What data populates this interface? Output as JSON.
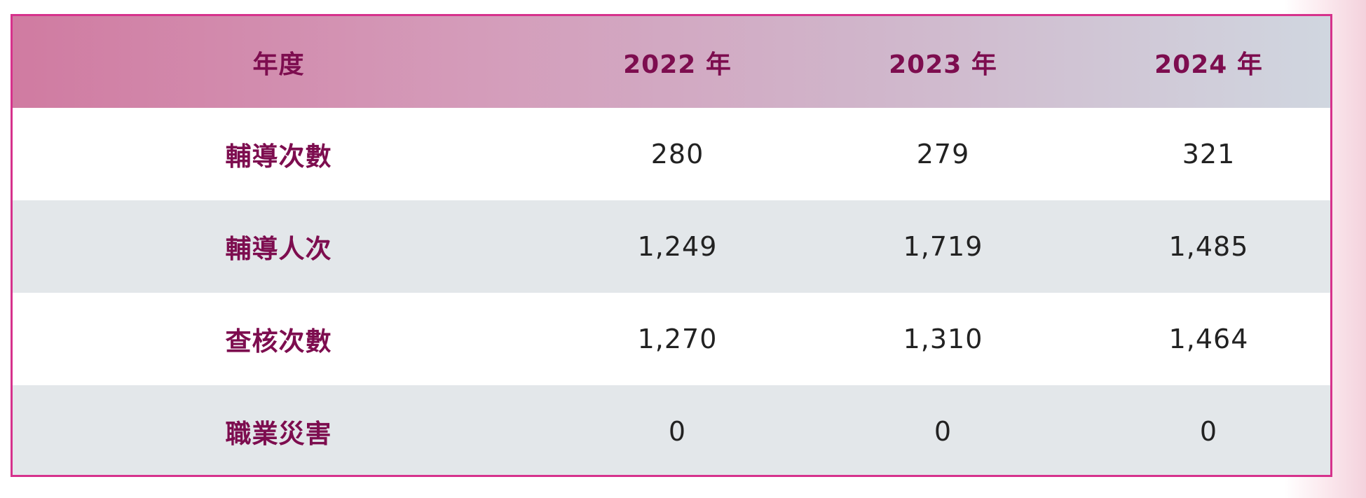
{
  "table": {
    "header": {
      "label": "年度",
      "years": [
        "2022 年",
        "2023 年",
        "2024 年"
      ]
    },
    "rows": [
      {
        "label": "輔導次數",
        "values": [
          "280",
          "279",
          "321"
        ]
      },
      {
        "label": "輔導人次",
        "values": [
          "1,249",
          "1,719",
          "1,485"
        ]
      },
      {
        "label": "查核次數",
        "values": [
          "1,270",
          "1,310",
          "1,464"
        ]
      },
      {
        "label": "職業災害",
        "values": [
          "0",
          "0",
          "0"
        ]
      }
    ]
  },
  "colors": {
    "border": "#d6328c",
    "heading_text": "#7d0d4f",
    "value_text": "#222222",
    "row_alt": "#e3e7ea"
  }
}
